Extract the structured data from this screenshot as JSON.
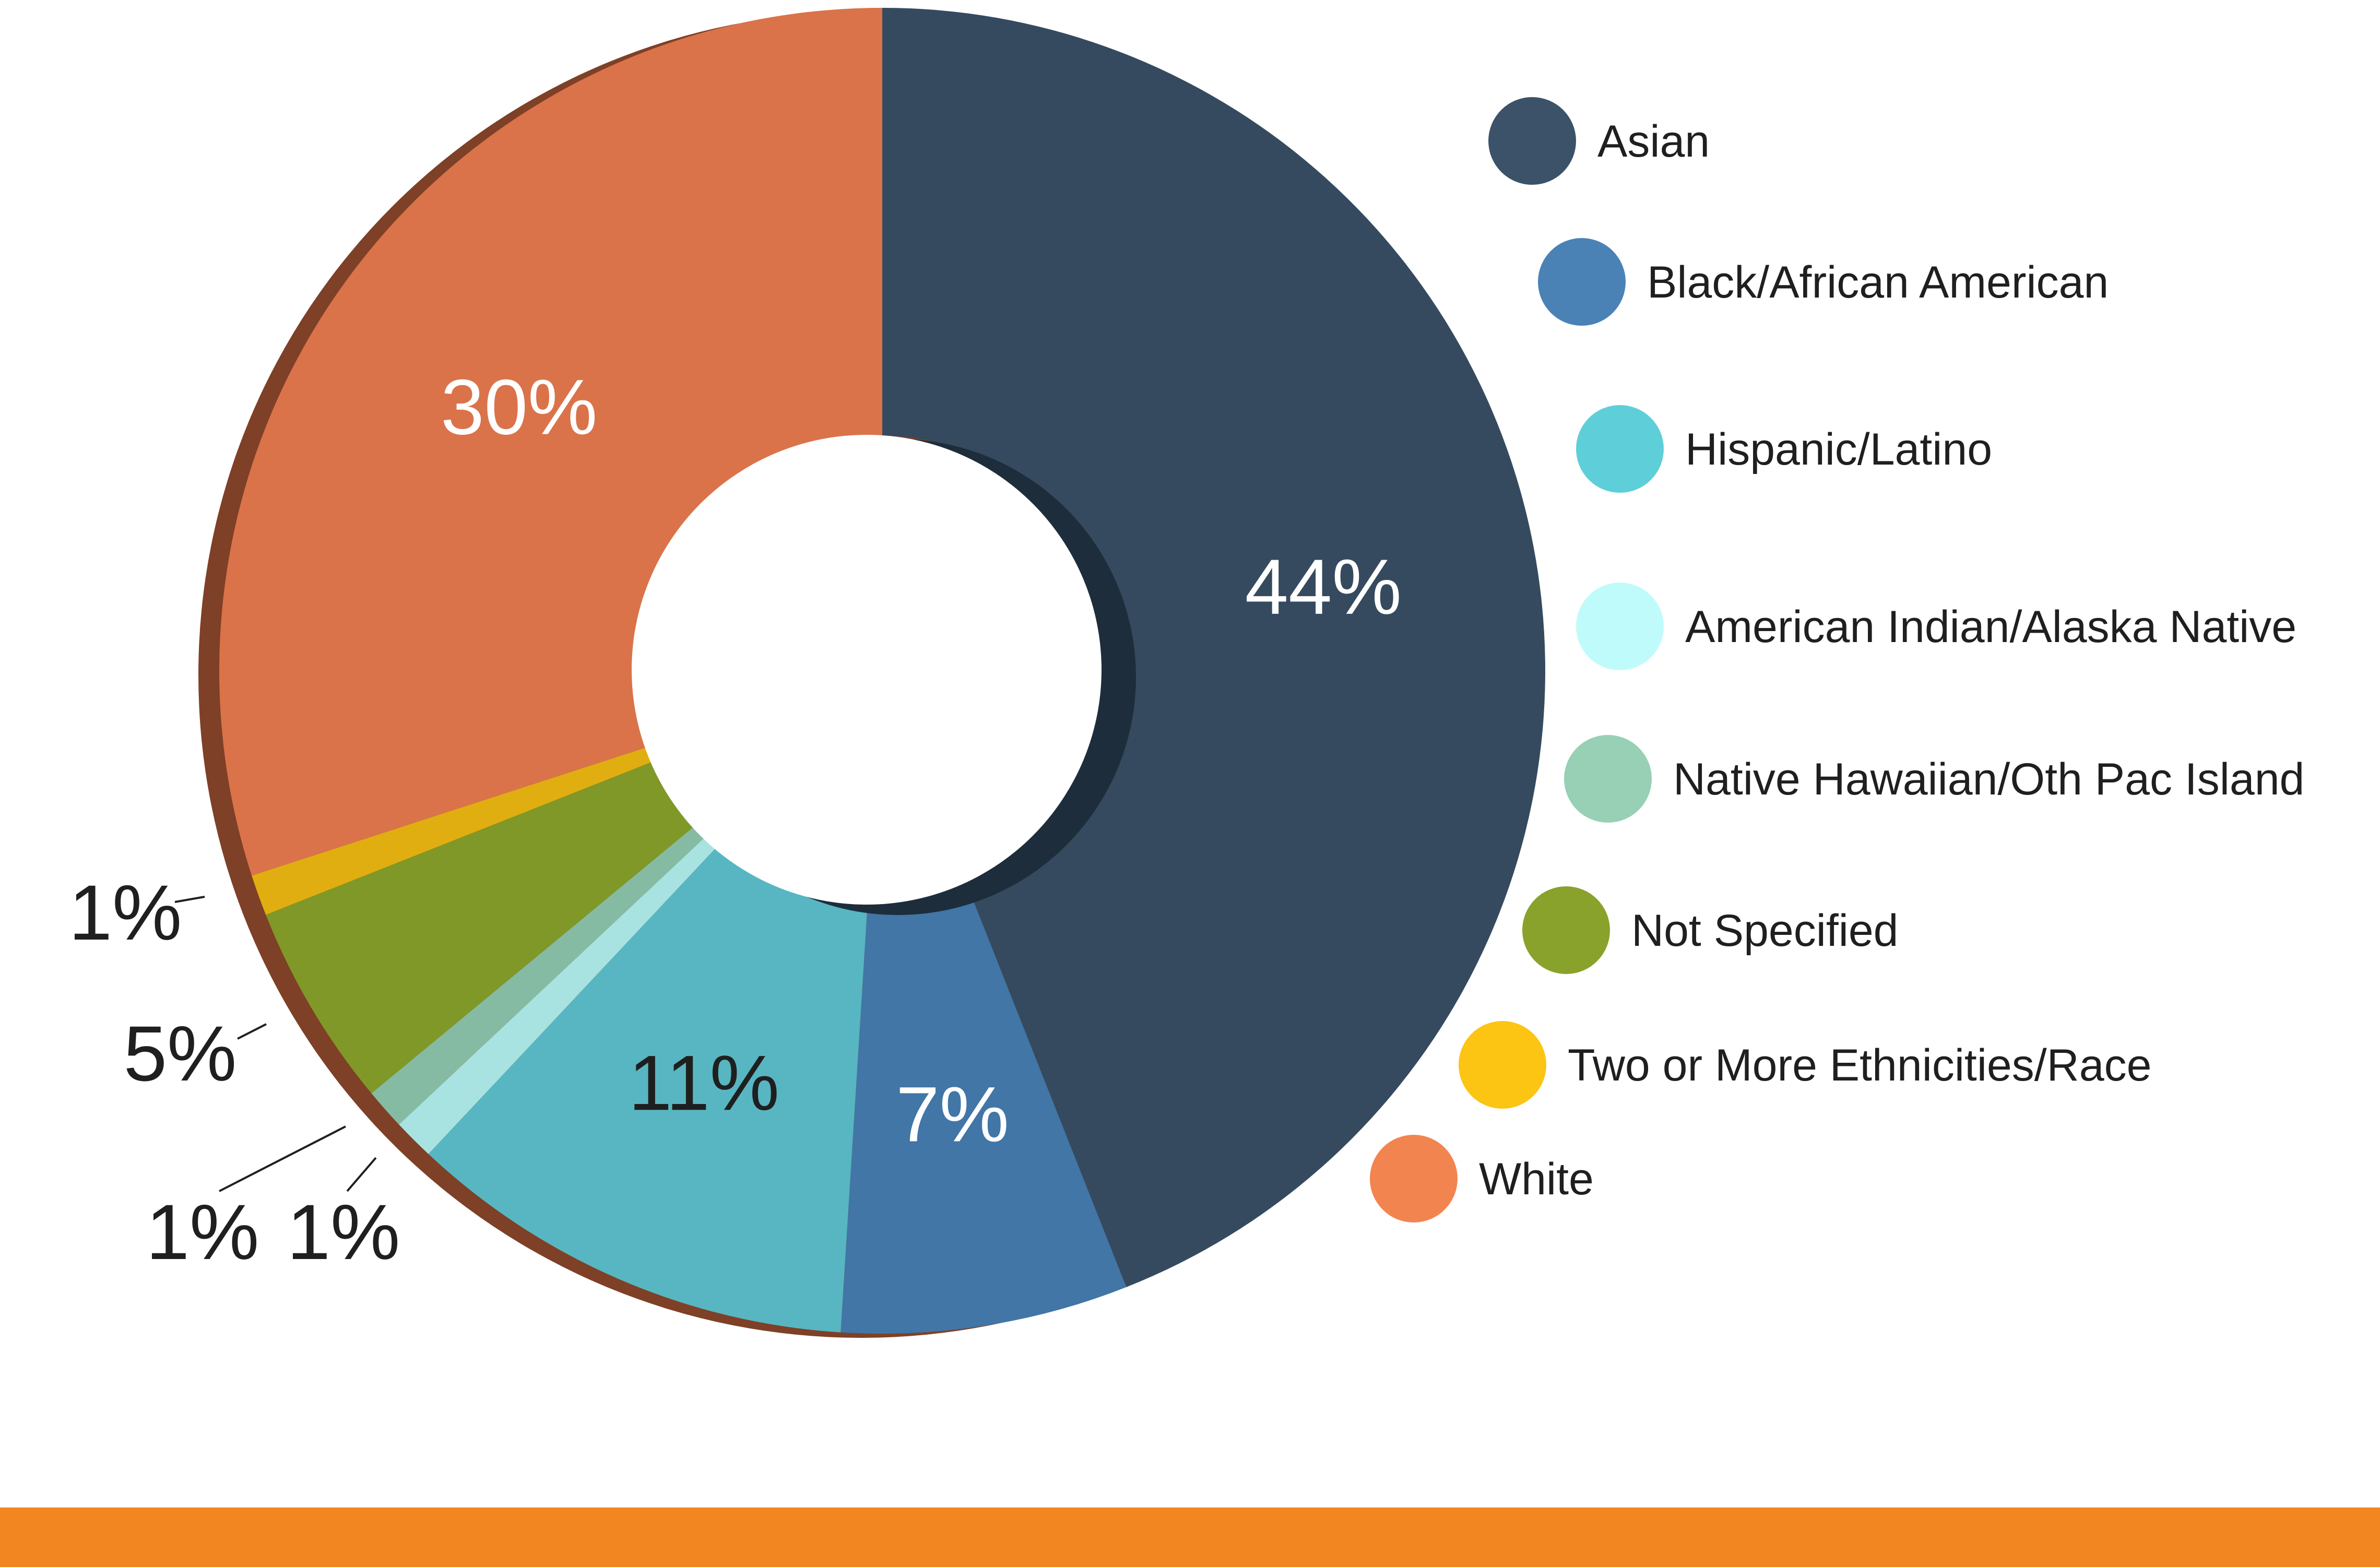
{
  "chart_data": {
    "type": "pie",
    "title": "",
    "legend_position": "right",
    "categories": [
      "Asian",
      "Black/African American",
      "Hispanic/Latino",
      "American Indian/Alaska Native",
      "Native Hawaiian/Oth Pac Island",
      "Not Specified",
      "Two or More Ethnicities/Race",
      "White"
    ],
    "values": [
      44,
      7,
      11,
      1,
      1,
      5,
      1,
      30
    ],
    "labels": [
      "44%",
      "7%",
      "11%",
      "1%",
      "1%",
      "5%",
      "1%",
      "30%"
    ],
    "colors": [
      "#354a5f",
      "#4176a6",
      "#57b6c1",
      "#a8e3e1",
      "#86bba3",
      "#809827",
      "#e0ae10",
      "#da734a"
    ],
    "legend_colors": [
      "#3b5268",
      "#4a82b6",
      "#5ecfd8",
      "#c0fbfb",
      "#97d0b5",
      "#89a22b",
      "#fcc413",
      "#f2844f"
    ]
  }
}
